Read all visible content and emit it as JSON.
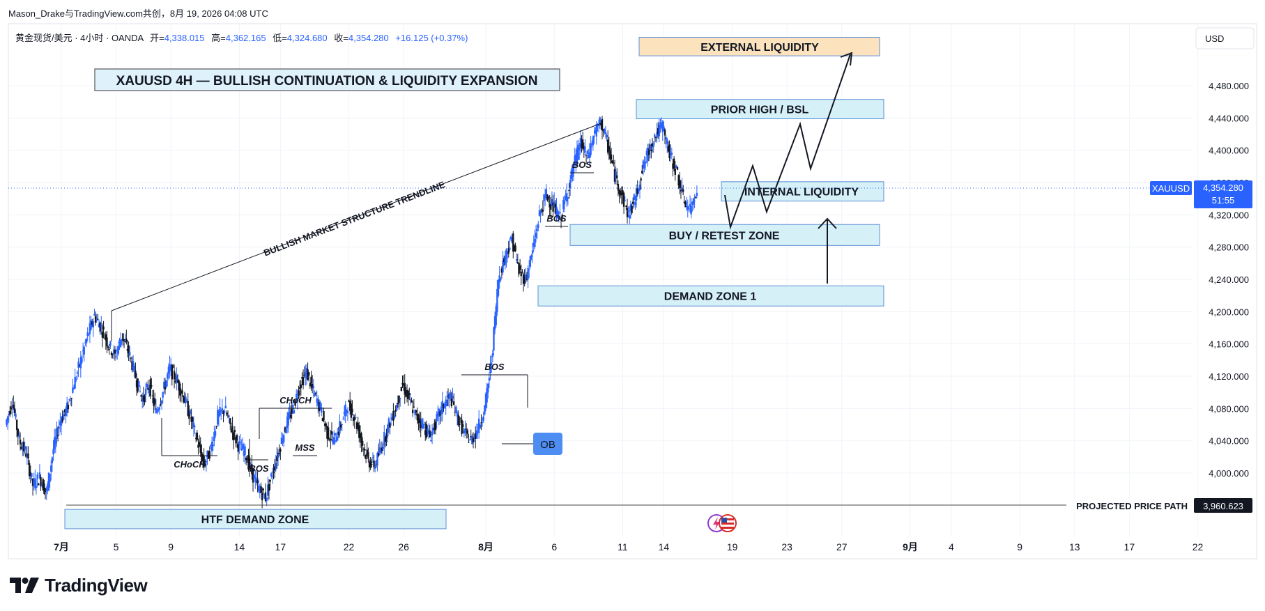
{
  "header": {
    "publisher": "Mason_Drake与TradingView.com共创，8月 19, 2026 04:08 UTC"
  },
  "legend": {
    "symbol": "黄金现货/美元 · 4小时 · OANDA",
    "open_label": "开=",
    "open": "4,338.015",
    "high_label": "高=",
    "high": "4,362.165",
    "low_label": "低=",
    "low": "4,324.680",
    "close_label": "收=",
    "close": "4,354.280",
    "change": "+16.125 (+0.37%)"
  },
  "currency_button": "USD",
  "title_box": "XAUUSD 4H — BULLISH CONTINUATION & LIQUIDITY EXPANSION",
  "price_tag": {
    "symbol": "XAUUSD",
    "price": "4,354.280",
    "countdown": "51:55"
  },
  "projected_tag": {
    "label": "PROJECTED PRICE PATH",
    "price": "3,960.623"
  },
  "colors": {
    "up": "#2962ff",
    "down": "#131722",
    "zone_fill": "#d6f0f8",
    "zone_border": "#5b8fd6",
    "ext_fill": "#fde3bd",
    "ob": "#4e8ef2",
    "grid": "#f0f3fa",
    "axis_text": "#131722",
    "price_line": "#2962ff"
  },
  "icons": [
    "tradingview-logo-icon",
    "flash-icon",
    "us-flag-icon"
  ],
  "chart_data": {
    "type": "candlestick",
    "timeframe": "4H",
    "y_ticks": [
      4000,
      4040,
      4080,
      4120,
      4160,
      4200,
      4240,
      4280,
      4320,
      4360,
      4400,
      4440,
      4480
    ],
    "y_tick_labels": [
      "4,000.000",
      "4,040.000",
      "4,080.000",
      "4,120.000",
      "4,160.000",
      "4,200.000",
      "4,240.000",
      "4,280.000",
      "4,320.000",
      "4,360.000",
      "4,400.000",
      "4,440.000",
      "4,480.000"
    ],
    "ylim": [
      3925,
      4545
    ],
    "x_ticks": [
      {
        "day": 1,
        "label": "7月"
      },
      {
        "day": 5,
        "label": "5"
      },
      {
        "day": 9,
        "label": "9"
      },
      {
        "day": 14,
        "label": "14"
      },
      {
        "day": 17,
        "label": "17"
      },
      {
        "day": 22,
        "label": "22"
      },
      {
        "day": 26,
        "label": "26"
      },
      {
        "day": 32,
        "label": "8月"
      },
      {
        "day": 37,
        "label": "6"
      },
      {
        "day": 42,
        "label": "11"
      },
      {
        "day": 45,
        "label": "14"
      },
      {
        "day": 50,
        "label": "19"
      },
      {
        "day": 54,
        "label": "23"
      },
      {
        "day": 58,
        "label": "27"
      },
      {
        "day": 63,
        "label": "9月"
      },
      {
        "day": 66,
        "label": "4"
      },
      {
        "day": 71,
        "label": "9"
      },
      {
        "day": 75,
        "label": "13"
      },
      {
        "day": 79,
        "label": "17"
      },
      {
        "day": 84,
        "label": "22"
      }
    ],
    "price_path_closes": [
      {
        "day": -3,
        "close": 4060
      },
      {
        "day": -2.5,
        "close": 4090
      },
      {
        "day": -2,
        "close": 4040
      },
      {
        "day": -1.5,
        "close": 4025
      },
      {
        "day": -1,
        "close": 3985
      },
      {
        "day": -0.5,
        "close": 3995
      },
      {
        "day": 0,
        "close": 3975
      },
      {
        "day": 0.5,
        "close": 4030
      },
      {
        "day": 1,
        "close": 4065
      },
      {
        "day": 1.5,
        "close": 4080
      },
      {
        "day": 2,
        "close": 4110
      },
      {
        "day": 2.5,
        "close": 4140
      },
      {
        "day": 3,
        "close": 4170
      },
      {
        "day": 3.5,
        "close": 4195
      },
      {
        "day": 4,
        "close": 4180
      },
      {
        "day": 4.5,
        "close": 4160
      },
      {
        "day": 5,
        "close": 4145
      },
      {
        "day": 5.5,
        "close": 4170
      },
      {
        "day": 6,
        "close": 4150
      },
      {
        "day": 6.5,
        "close": 4120
      },
      {
        "day": 7,
        "close": 4090
      },
      {
        "day": 7.5,
        "close": 4110
      },
      {
        "day": 8,
        "close": 4075
      },
      {
        "day": 8.5,
        "close": 4100
      },
      {
        "day": 9,
        "close": 4130
      },
      {
        "day": 9.5,
        "close": 4115
      },
      {
        "day": 10,
        "close": 4095
      },
      {
        "day": 10.5,
        "close": 4070
      },
      {
        "day": 11,
        "close": 4040
      },
      {
        "day": 11.5,
        "close": 4010
      },
      {
        "day": 12,
        "close": 4030
      },
      {
        "day": 12.5,
        "close": 4070
      },
      {
        "day": 13,
        "close": 4080
      },
      {
        "day": 13.5,
        "close": 4055
      },
      {
        "day": 14,
        "close": 4035
      },
      {
        "day": 14.5,
        "close": 4025
      },
      {
        "day": 15,
        "close": 4000
      },
      {
        "day": 15.5,
        "close": 3980
      },
      {
        "day": 16,
        "close": 3970
      },
      {
        "day": 16.5,
        "close": 4000
      },
      {
        "day": 17,
        "close": 4030
      },
      {
        "day": 17.5,
        "close": 4060
      },
      {
        "day": 18,
        "close": 4080
      },
      {
        "day": 18.5,
        "close": 4110
      },
      {
        "day": 19,
        "close": 4125
      },
      {
        "day": 19.5,
        "close": 4100
      },
      {
        "day": 20,
        "close": 4080
      },
      {
        "day": 20.5,
        "close": 4050
      },
      {
        "day": 21,
        "close": 4040
      },
      {
        "day": 21.5,
        "close": 4060
      },
      {
        "day": 22,
        "close": 4085
      },
      {
        "day": 22.5,
        "close": 4070
      },
      {
        "day": 23,
        "close": 4040
      },
      {
        "day": 23.5,
        "close": 4015
      },
      {
        "day": 24,
        "close": 4010
      },
      {
        "day": 24.5,
        "close": 4035
      },
      {
        "day": 25,
        "close": 4060
      },
      {
        "day": 25.5,
        "close": 4080
      },
      {
        "day": 26,
        "close": 4110
      },
      {
        "day": 26.5,
        "close": 4090
      },
      {
        "day": 27,
        "close": 4070
      },
      {
        "day": 27.5,
        "close": 4060
      },
      {
        "day": 28,
        "close": 4045
      },
      {
        "day": 28.5,
        "close": 4065
      },
      {
        "day": 29,
        "close": 4085
      },
      {
        "day": 29.5,
        "close": 4095
      },
      {
        "day": 30,
        "close": 4070
      },
      {
        "day": 30.5,
        "close": 4050
      },
      {
        "day": 31,
        "close": 4040
      },
      {
        "day": 31.5,
        "close": 4055
      },
      {
        "day": 32,
        "close": 4080
      },
      {
        "day": 32.5,
        "close": 4140
      },
      {
        "day": 33,
        "close": 4240
      },
      {
        "day": 33.5,
        "close": 4270
      },
      {
        "day": 34,
        "close": 4290
      },
      {
        "day": 34.5,
        "close": 4250
      },
      {
        "day": 35,
        "close": 4240
      },
      {
        "day": 35.5,
        "close": 4275
      },
      {
        "day": 36,
        "close": 4320
      },
      {
        "day": 36.5,
        "close": 4345
      },
      {
        "day": 37,
        "close": 4330
      },
      {
        "day": 37.5,
        "close": 4315
      },
      {
        "day": 38,
        "close": 4345
      },
      {
        "day": 38.5,
        "close": 4380
      },
      {
        "day": 39,
        "close": 4410
      },
      {
        "day": 39.5,
        "close": 4390
      },
      {
        "day": 40,
        "close": 4420
      },
      {
        "day": 40.5,
        "close": 4435
      },
      {
        "day": 41,
        "close": 4405
      },
      {
        "day": 41.5,
        "close": 4370
      },
      {
        "day": 42,
        "close": 4345
      },
      {
        "day": 42.5,
        "close": 4320
      },
      {
        "day": 43,
        "close": 4340
      },
      {
        "day": 43.5,
        "close": 4375
      },
      {
        "day": 44,
        "close": 4400
      },
      {
        "day": 44.5,
        "close": 4420
      },
      {
        "day": 45,
        "close": 4430
      },
      {
        "day": 45.5,
        "close": 4395
      },
      {
        "day": 46,
        "close": 4375
      },
      {
        "day": 46.5,
        "close": 4340
      },
      {
        "day": 47,
        "close": 4325
      },
      {
        "day": 47.5,
        "close": 4354
      }
    ],
    "htf_demand_zone_range": [
      3925,
      3960
    ],
    "demand_zone_1_range": [
      4220,
      4240
    ],
    "buy_retest_zone_range": [
      4280,
      4305
    ],
    "internal_liquidity_range": [
      4350,
      4370
    ],
    "prior_high_range": [
      4445,
      4460
    ],
    "external_liquidity_range": [
      4522,
      4543
    ],
    "annotations": {
      "trendline": "BULLISH MARKET STRUCTURE TRENDLINE",
      "choch": "CHoCH",
      "bos": "BOS",
      "mss": "MSS",
      "ob": "OB",
      "htf_demand_zone": "HTF DEMAND ZONE",
      "demand_zone_1": "DEMAND ZONE 1",
      "buy_retest_zone": "BUY / RETEST ZONE",
      "internal_liquidity": "INTERNAL LIQUIDITY",
      "prior_high": "PRIOR HIGH / BSL",
      "external_liquidity": "EXTERNAL LIQUIDITY"
    },
    "projected_path": [
      {
        "day": 50.5,
        "price": 4330
      },
      {
        "day": 51.5,
        "price": 4275
      },
      {
        "day": 53,
        "price": 4370
      },
      {
        "day": 54,
        "price": 4305
      },
      {
        "day": 56,
        "price": 4420
      },
      {
        "day": 57,
        "price": 4375
      },
      {
        "day": 59,
        "price": 4540
      }
    ]
  },
  "brand": "TradingView"
}
